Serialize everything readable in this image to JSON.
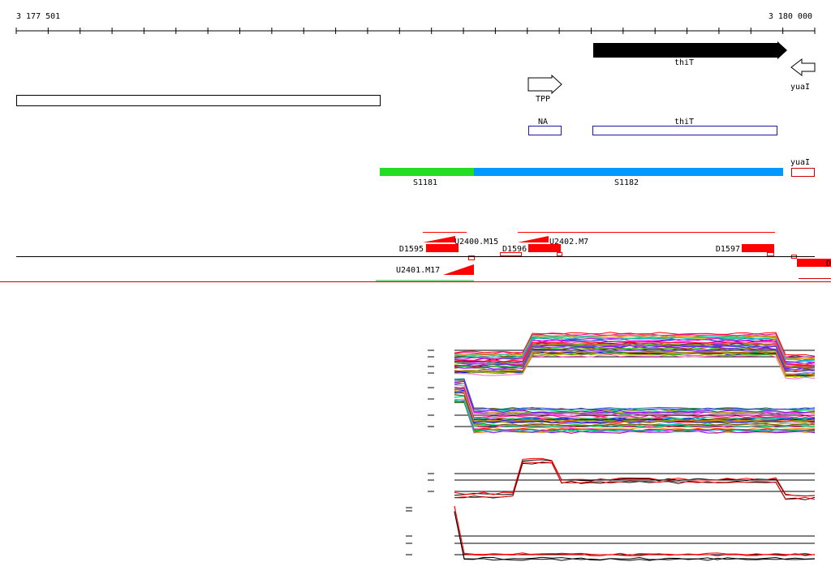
{
  "ruler": {
    "start_label": "3 177 501",
    "end_label": "3 180 000"
  },
  "genes": [
    {
      "name": "thiT",
      "strand": "+",
      "filled": true
    },
    {
      "name": "yuaI",
      "strand": "-",
      "filled": false
    },
    {
      "name": "TPP",
      "strand": "+",
      "filled": false
    }
  ],
  "annotations": [
    {
      "name": "NA",
      "color": "#1a1aa6"
    },
    {
      "name": "thiT",
      "color": "#1a1aa6"
    },
    {
      "name": "yuaI",
      "color": "#cc0000"
    }
  ],
  "segments": [
    {
      "name": "S1181",
      "color": "#22dd22"
    },
    {
      "name": "S1182",
      "color": "#0099ff"
    }
  ],
  "features": {
    "upstream": [
      {
        "name": "U2400.M15"
      },
      {
        "name": "U2402.M7"
      },
      {
        "name": "U2401.M17"
      }
    ],
    "downstream": [
      {
        "name": "D1595"
      },
      {
        "name": "D1596"
      },
      {
        "name": "D1597"
      },
      {
        "name": "D"
      }
    ]
  },
  "colors": {
    "feature": "#ff0000",
    "track": "#cc0000",
    "gene_fill": "#000000"
  }
}
